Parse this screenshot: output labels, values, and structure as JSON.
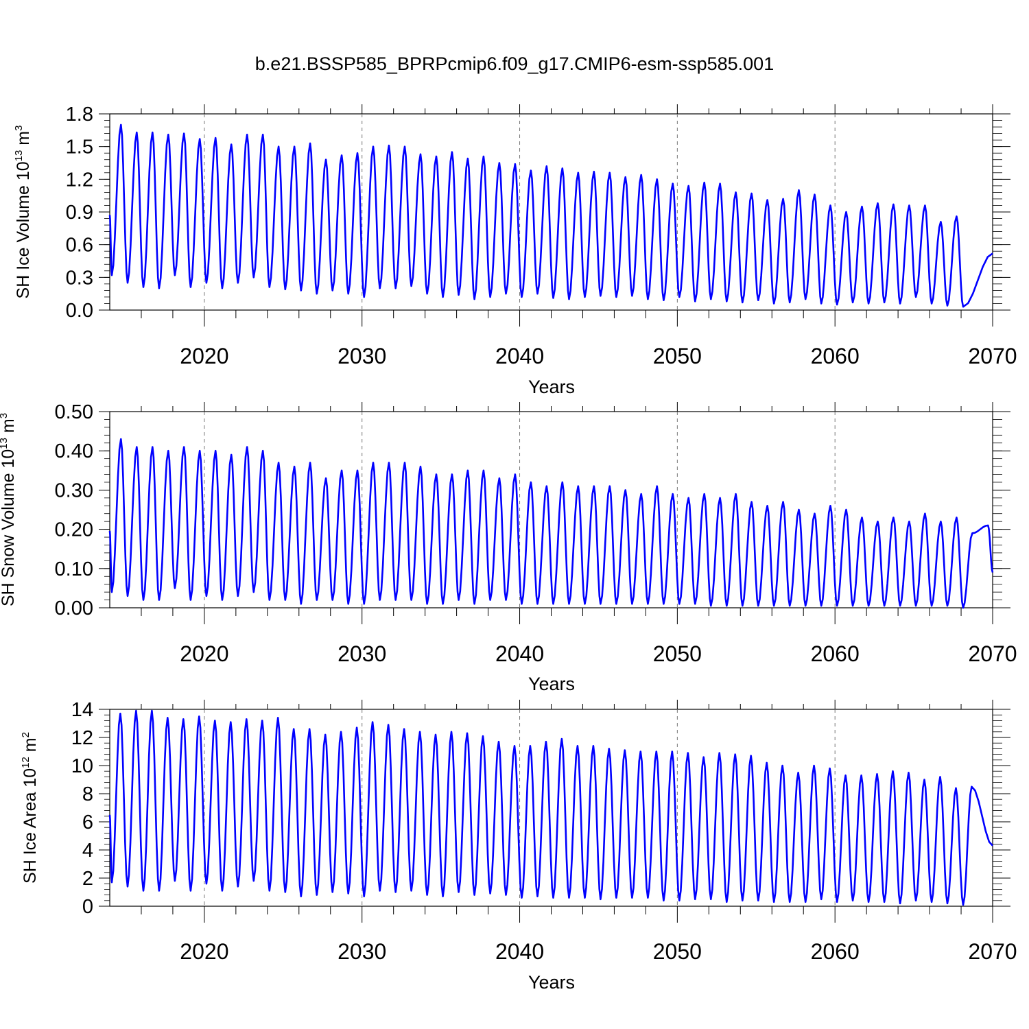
{
  "chart_data": [
    {
      "type": "line",
      "title": "b.e21.BSSP585_BPRPcmip6.f09_g17.CMIP6-esm-ssp585.001",
      "ylabel": {
        "text": "SH Ice Volume 10",
        "exp": "13",
        "unit": " m",
        "unit_exp": "3"
      },
      "xlabel": "Years",
      "xlim": [
        2014.0,
        2070.0
      ],
      "ylim": [
        0.0,
        1.8
      ],
      "yticks": [
        0.0,
        0.3,
        0.6,
        0.9,
        1.2,
        1.5,
        1.8
      ],
      "ytick_labels": [
        "0.0",
        "0.3",
        "0.6",
        "0.9",
        "1.2",
        "1.5",
        "1.8"
      ],
      "xticks": [
        2020,
        2030,
        2040,
        2050,
        2060,
        2070
      ],
      "xtick_labels": [
        "2020",
        "2030",
        "2040",
        "2050",
        "2060",
        "2070"
      ],
      "series": [
        {
          "name": "SH Ice Volume",
          "color": "#0000ff",
          "start": 2014.0,
          "peak_phase": 0.71,
          "trough_phase": 0.13,
          "maxima": [
            1.7,
            1.63,
            1.63,
            1.61,
            1.62,
            1.57,
            1.58,
            1.52,
            1.61,
            1.61,
            1.5,
            1.5,
            1.53,
            1.38,
            1.42,
            1.44,
            1.5,
            1.51,
            1.5,
            1.43,
            1.41,
            1.45,
            1.39,
            1.41,
            1.35,
            1.34,
            1.28,
            1.32,
            1.3,
            1.26,
            1.27,
            1.26,
            1.22,
            1.24,
            1.2,
            1.16,
            1.14,
            1.17,
            1.16,
            1.08,
            1.07,
            1.01,
            1.02,
            1.1,
            1.06,
            0.96,
            0.9,
            0.95,
            0.98,
            0.97,
            0.96,
            0.96,
            0.81,
            0.86
          ],
          "minima": [
            0.32,
            0.25,
            0.21,
            0.2,
            0.32,
            0.21,
            0.25,
            0.2,
            0.25,
            0.3,
            0.21,
            0.19,
            0.18,
            0.15,
            0.18,
            0.15,
            0.12,
            0.2,
            0.2,
            0.22,
            0.15,
            0.12,
            0.14,
            0.1,
            0.12,
            0.15,
            0.12,
            0.15,
            0.11,
            0.1,
            0.12,
            0.13,
            0.12,
            0.13,
            0.1,
            0.09,
            0.12,
            0.08,
            0.1,
            0.08,
            0.07,
            0.09,
            0.06,
            0.07,
            0.1,
            0.06,
            0.05,
            0.07,
            0.06,
            0.07,
            0.06,
            0.12,
            0.06,
            0.04,
            0.03
          ],
          "end_value": 0.52
        }
      ]
    },
    {
      "type": "line",
      "ylabel": {
        "text": "SH Snow Volume 10",
        "exp": "13",
        "unit": " m",
        "unit_exp": "3"
      },
      "xlabel": "Years",
      "xlim": [
        2014.0,
        2070.0
      ],
      "ylim": [
        0.0,
        0.5
      ],
      "yticks": [
        0.0,
        0.1,
        0.2,
        0.3,
        0.4,
        0.5
      ],
      "ytick_labels": [
        "0.00",
        "0.10",
        "0.20",
        "0.30",
        "0.40",
        "0.50"
      ],
      "xticks": [
        2020,
        2030,
        2040,
        2050,
        2060,
        2070
      ],
      "xtick_labels": [
        "2020",
        "2030",
        "2040",
        "2050",
        "2060",
        "2070"
      ],
      "series": [
        {
          "name": "SH Snow Volume",
          "color": "#0000ff",
          "start": 2014.0,
          "peak_phase": 0.71,
          "trough_phase": 0.13,
          "maxima": [
            0.43,
            0.41,
            0.41,
            0.4,
            0.41,
            0.4,
            0.4,
            0.39,
            0.41,
            0.4,
            0.37,
            0.36,
            0.37,
            0.33,
            0.35,
            0.35,
            0.37,
            0.37,
            0.37,
            0.36,
            0.34,
            0.34,
            0.35,
            0.35,
            0.33,
            0.34,
            0.32,
            0.31,
            0.32,
            0.31,
            0.31,
            0.31,
            0.3,
            0.29,
            0.31,
            0.29,
            0.28,
            0.29,
            0.28,
            0.29,
            0.27,
            0.26,
            0.27,
            0.25,
            0.24,
            0.26,
            0.25,
            0.23,
            0.22,
            0.23,
            0.22,
            0.24,
            0.22,
            0.23,
            0.19,
            0.21
          ],
          "minima": [
            0.04,
            0.03,
            0.02,
            0.02,
            0.05,
            0.02,
            0.03,
            0.02,
            0.03,
            0.04,
            0.02,
            0.02,
            0.01,
            0.02,
            0.02,
            0.01,
            0.01,
            0.02,
            0.02,
            0.02,
            0.01,
            0.01,
            0.02,
            0.01,
            0.02,
            0.02,
            0.01,
            0.01,
            0.01,
            0.01,
            0.01,
            0.01,
            0.01,
            0.01,
            0.01,
            0.01,
            0.01,
            0.01,
            0.005,
            0.005,
            0.005,
            0.005,
            0.005,
            0.005,
            0.005,
            0.005,
            0.005,
            0.005,
            0.005,
            0.005,
            0.005,
            0.005,
            0.005,
            0.005,
            0.0
          ],
          "end_value": 0.09
        }
      ]
    },
    {
      "type": "line",
      "ylabel": {
        "text": "SH Ice Area 10",
        "exp": "12",
        "unit": " m",
        "unit_exp": "2"
      },
      "xlabel": "Years",
      "xlim": [
        2014.0,
        2070.0
      ],
      "ylim": [
        0,
        14
      ],
      "yticks": [
        0,
        2,
        4,
        6,
        8,
        10,
        12,
        14
      ],
      "ytick_labels": [
        "0",
        "2",
        "4",
        "6",
        "8",
        "10",
        "12",
        "14"
      ],
      "xticks": [
        2020,
        2030,
        2040,
        2050,
        2060,
        2070
      ],
      "xtick_labels": [
        "2020",
        "2030",
        "2040",
        "2050",
        "2060",
        "2070"
      ],
      "series": [
        {
          "name": "SH Ice Area",
          "color": "#0000ff",
          "start": 2014.0,
          "peak_phase": 0.67,
          "trough_phase": 0.13,
          "maxima": [
            13.7,
            13.9,
            13.9,
            13.4,
            13.3,
            13.5,
            13.2,
            13.1,
            13.3,
            13.2,
            13.4,
            12.6,
            12.6,
            12.2,
            12.4,
            12.7,
            13.1,
            12.9,
            12.6,
            12.4,
            12.2,
            12.4,
            12.3,
            12.1,
            11.7,
            11.4,
            11.4,
            11.7,
            11.9,
            11.4,
            11.4,
            11.2,
            11.1,
            11.0,
            11.0,
            11.0,
            10.9,
            10.6,
            10.9,
            10.8,
            10.7,
            10.2,
            10.0,
            9.5,
            10.0,
            9.8,
            9.3,
            9.3,
            9.4,
            9.6,
            9.5,
            9.0,
            9.2,
            8.4,
            8.5
          ],
          "minima": [
            1.7,
            1.4,
            1.1,
            1.1,
            1.8,
            1.1,
            1.6,
            1.1,
            1.4,
            1.8,
            1.1,
            1.0,
            0.7,
            0.8,
            1.0,
            0.9,
            0.7,
            1.1,
            1.0,
            1.1,
            0.8,
            0.7,
            1.0,
            0.8,
            0.9,
            0.8,
            0.6,
            0.7,
            0.6,
            0.6,
            0.6,
            0.5,
            0.6,
            0.6,
            0.6,
            0.4,
            0.4,
            0.5,
            0.5,
            0.3,
            0.4,
            0.4,
            0.3,
            0.3,
            0.3,
            0.5,
            0.3,
            0.4,
            0.3,
            0.3,
            0.2,
            0.4,
            0.3,
            0.2,
            0.1
          ],
          "end_value": 4.3
        }
      ]
    }
  ]
}
